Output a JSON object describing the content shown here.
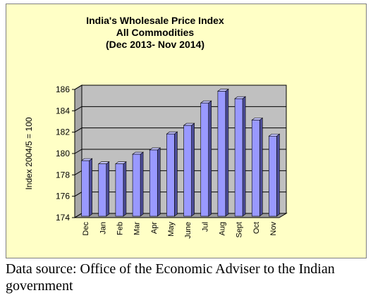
{
  "chart_data": {
    "type": "bar",
    "title_lines": [
      "India's  Wholesale Price Index",
      "All Commodities",
      "(Dec 2013- Nov 2014)"
    ],
    "ylabel": "Index 2004/5 = 100",
    "xlabel": "",
    "ylim": [
      174,
      186
    ],
    "yticks": [
      174,
      176,
      178,
      180,
      182,
      184,
      186
    ],
    "categories": [
      "Dec",
      "Jan",
      "Feb",
      "Mar",
      "Apr",
      "May",
      "June",
      "Jul",
      "Aug",
      "Sept",
      "Oct",
      "Nov"
    ],
    "values": [
      179.2,
      178.9,
      178.9,
      179.8,
      180.2,
      181.7,
      182.5,
      184.6,
      185.7,
      185.0,
      183.0,
      181.5
    ],
    "grid": true,
    "legend": "none",
    "colors": {
      "bar_front": "#9999ff",
      "bar_side": "#4d4d99",
      "bar_top": "#c4c4ff",
      "wall": "#c0c0c0",
      "floor": "#9a9a9a",
      "frame": "#ffffc6"
    }
  },
  "source_note": "Data source: Office of the Economic Adviser to the Indian government"
}
